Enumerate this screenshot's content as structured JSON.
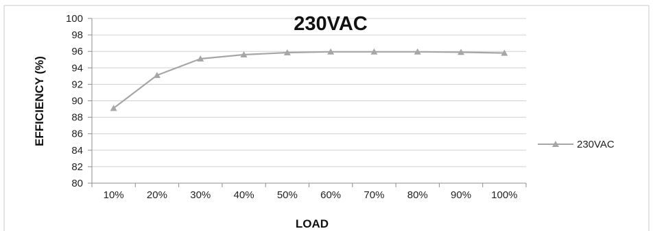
{
  "chart_data": {
    "type": "line",
    "title": "230VAC",
    "xlabel": "LOAD",
    "ylabel": "EFFICIENCY (%)",
    "categories": [
      "10%",
      "20%",
      "30%",
      "40%",
      "50%",
      "60%",
      "70%",
      "80%",
      "90%",
      "100%"
    ],
    "series": [
      {
        "name": "230VAC",
        "values": [
          89.1,
          93.1,
          95.1,
          95.6,
          95.85,
          95.95,
          95.95,
          95.95,
          95.9,
          95.8
        ],
        "color": "#a6a6a6",
        "marker": "triangle"
      }
    ],
    "ylim": [
      80,
      100
    ],
    "yticks": [
      "80",
      "82",
      "84",
      "86",
      "88",
      "90",
      "92",
      "94",
      "96",
      "98",
      "100"
    ],
    "grid": true,
    "legend_position": "right"
  }
}
